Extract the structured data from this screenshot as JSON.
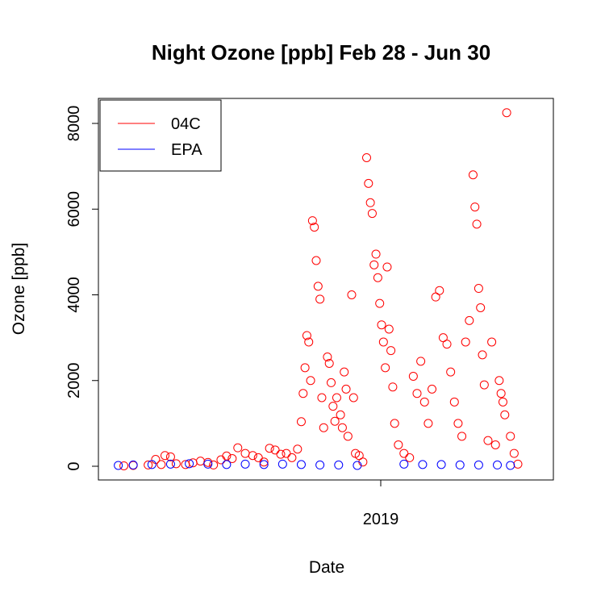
{
  "chart_data": {
    "type": "scatter",
    "title": "Night Ozone [ppb] Feb 28 - Jun 30",
    "xlabel": "Date",
    "ylabel": "Ozone [ppb]",
    "x_ticks": [
      "2019"
    ],
    "y_ticks": [
      0,
      2000,
      4000,
      6000,
      8000
    ],
    "ylim": [
      -300,
      8600
    ],
    "legend": {
      "position": "top-left",
      "entries": [
        "04C",
        "EPA"
      ]
    },
    "colors": {
      "04C": "#ff0000",
      "EPA": "#0000ff"
    },
    "series": [
      {
        "name": "04C",
        "points": [
          [
            0.05,
            10
          ],
          [
            0.1,
            20
          ],
          [
            0.18,
            30
          ],
          [
            0.22,
            160
          ],
          [
            0.25,
            40
          ],
          [
            0.27,
            250
          ],
          [
            0.3,
            220
          ],
          [
            0.33,
            60
          ],
          [
            0.38,
            40
          ],
          [
            0.42,
            80
          ],
          [
            0.46,
            120
          ],
          [
            0.5,
            90
          ],
          [
            0.53,
            30
          ],
          [
            0.57,
            150
          ],
          [
            0.6,
            240
          ],
          [
            0.63,
            180
          ],
          [
            0.66,
            430
          ],
          [
            0.7,
            300
          ],
          [
            0.74,
            250
          ],
          [
            0.77,
            200
          ],
          [
            0.8,
            100
          ],
          [
            0.83,
            420
          ],
          [
            0.86,
            380
          ],
          [
            0.89,
            280
          ],
          [
            0.92,
            300
          ],
          [
            0.95,
            200
          ],
          [
            0.98,
            400
          ],
          [
            1.0,
            1040
          ],
          [
            1.01,
            1700
          ],
          [
            1.02,
            2300
          ],
          [
            1.03,
            3050
          ],
          [
            1.04,
            2900
          ],
          [
            1.05,
            2000
          ],
          [
            1.06,
            5730
          ],
          [
            1.07,
            5580
          ],
          [
            1.08,
            4800
          ],
          [
            1.09,
            4200
          ],
          [
            1.1,
            3900
          ],
          [
            1.11,
            1600
          ],
          [
            1.12,
            900
          ],
          [
            1.14,
            2550
          ],
          [
            1.15,
            2400
          ],
          [
            1.16,
            1950
          ],
          [
            1.17,
            1400
          ],
          [
            1.18,
            1050
          ],
          [
            1.19,
            1600
          ],
          [
            1.21,
            1200
          ],
          [
            1.22,
            900
          ],
          [
            1.23,
            2200
          ],
          [
            1.24,
            1800
          ],
          [
            1.25,
            700
          ],
          [
            1.27,
            4000
          ],
          [
            1.28,
            1600
          ],
          [
            1.29,
            300
          ],
          [
            1.31,
            250
          ],
          [
            1.33,
            100
          ],
          [
            1.35,
            7200
          ],
          [
            1.36,
            6600
          ],
          [
            1.37,
            6150
          ],
          [
            1.38,
            5900
          ],
          [
            1.39,
            4700
          ],
          [
            1.4,
            4950
          ],
          [
            1.41,
            4400
          ],
          [
            1.42,
            3800
          ],
          [
            1.43,
            3300
          ],
          [
            1.44,
            2900
          ],
          [
            1.45,
            2300
          ],
          [
            1.46,
            4650
          ],
          [
            1.47,
            3200
          ],
          [
            1.48,
            2700
          ],
          [
            1.49,
            1850
          ],
          [
            1.5,
            1000
          ],
          [
            1.52,
            500
          ],
          [
            1.55,
            300
          ],
          [
            1.58,
            200
          ],
          [
            1.6,
            2100
          ],
          [
            1.62,
            1700
          ],
          [
            1.64,
            2450
          ],
          [
            1.66,
            1500
          ],
          [
            1.68,
            1000
          ],
          [
            1.7,
            1800
          ],
          [
            1.72,
            3950
          ],
          [
            1.74,
            4100
          ],
          [
            1.76,
            3000
          ],
          [
            1.78,
            2850
          ],
          [
            1.8,
            2200
          ],
          [
            1.82,
            1500
          ],
          [
            1.84,
            1000
          ],
          [
            1.86,
            700
          ],
          [
            1.88,
            2900
          ],
          [
            1.9,
            3400
          ],
          [
            1.92,
            6800
          ],
          [
            1.93,
            6050
          ],
          [
            1.94,
            5650
          ],
          [
            1.95,
            4150
          ],
          [
            1.96,
            3700
          ],
          [
            1.97,
            2600
          ],
          [
            1.98,
            1900
          ],
          [
            2.0,
            600
          ],
          [
            2.02,
            2900
          ],
          [
            2.04,
            500
          ],
          [
            2.06,
            2000
          ],
          [
            2.07,
            1700
          ],
          [
            2.08,
            1500
          ],
          [
            2.09,
            1200
          ],
          [
            2.1,
            8250
          ],
          [
            2.12,
            700
          ],
          [
            2.14,
            300
          ],
          [
            2.16,
            50
          ]
        ]
      },
      {
        "name": "EPA",
        "points": [
          [
            0.02,
            20
          ],
          [
            0.1,
            30
          ],
          [
            0.2,
            40
          ],
          [
            0.3,
            50
          ],
          [
            0.4,
            60
          ],
          [
            0.5,
            50
          ],
          [
            0.6,
            40
          ],
          [
            0.7,
            50
          ],
          [
            0.8,
            40
          ],
          [
            0.9,
            50
          ],
          [
            1.0,
            40
          ],
          [
            1.1,
            30
          ],
          [
            1.2,
            30
          ],
          [
            1.3,
            20
          ],
          [
            1.55,
            50
          ],
          [
            1.65,
            40
          ],
          [
            1.75,
            40
          ],
          [
            1.85,
            30
          ],
          [
            1.95,
            30
          ],
          [
            2.05,
            30
          ],
          [
            2.12,
            20
          ]
        ]
      }
    ]
  }
}
